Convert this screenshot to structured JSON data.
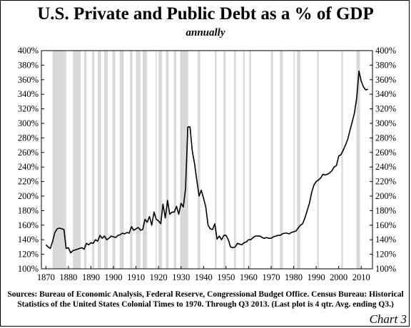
{
  "chart_data": {
    "type": "line",
    "title": "U.S. Private and Public Debt as a % of GDP",
    "subtitle": "annually",
    "xlabel": "",
    "ylabel": "",
    "xlim": [
      1868,
      2015
    ],
    "ylim": [
      100,
      400
    ],
    "x_ticks": [
      1870,
      1880,
      1890,
      1900,
      1910,
      1920,
      1930,
      1940,
      1950,
      1960,
      1970,
      1980,
      1990,
      2000,
      2010
    ],
    "y_ticks": [
      100,
      120,
      140,
      160,
      180,
      200,
      220,
      240,
      260,
      280,
      300,
      320,
      340,
      360,
      380,
      400
    ],
    "y_tick_labels": [
      "100%",
      "120%",
      "140%",
      "160%",
      "180%",
      "200%",
      "220%",
      "240%",
      "260%",
      "280%",
      "300%",
      "320%",
      "340%",
      "360%",
      "380%",
      "400%"
    ],
    "grid": false,
    "line_color": "#000000",
    "recession_color": "#d9d9d9",
    "recession_periods": [
      [
        1873.0,
        1879.0
      ],
      [
        1882.0,
        1885.5
      ],
      [
        1887.0,
        1888.0
      ],
      [
        1890.5,
        1891.5
      ],
      [
        1893.0,
        1894.5
      ],
      [
        1895.8,
        1897.5
      ],
      [
        1899.5,
        1900.8
      ],
      [
        1902.7,
        1904.6
      ],
      [
        1907.3,
        1908.5
      ],
      [
        1910.0,
        1912.0
      ],
      [
        1913.0,
        1914.9
      ],
      [
        1918.7,
        1919.2
      ],
      [
        1920.0,
        1921.5
      ],
      [
        1923.3,
        1924.5
      ],
      [
        1926.8,
        1927.9
      ],
      [
        1929.6,
        1933.2
      ],
      [
        1937.4,
        1938.5
      ],
      [
        1945.0,
        1945.8
      ],
      [
        1948.9,
        1949.8
      ],
      [
        1953.5,
        1954.4
      ],
      [
        1957.6,
        1958.3
      ],
      [
        1960.3,
        1961.1
      ],
      [
        1969.9,
        1970.9
      ],
      [
        1973.9,
        1975.2
      ],
      [
        1980.0,
        1980.5
      ],
      [
        1981.5,
        1982.9
      ],
      [
        1990.5,
        1991.2
      ],
      [
        2001.2,
        2001.9
      ],
      [
        2007.9,
        2009.5
      ]
    ],
    "series": [
      {
        "name": "",
        "x": [
          1870,
          1871,
          1872,
          1873,
          1874,
          1875,
          1876,
          1877,
          1878,
          1879,
          1880,
          1881,
          1882,
          1883,
          1884,
          1885,
          1886,
          1887,
          1888,
          1889,
          1890,
          1891,
          1892,
          1893,
          1894,
          1895,
          1896,
          1897,
          1898,
          1899,
          1900,
          1901,
          1902,
          1903,
          1904,
          1905,
          1906,
          1907,
          1908,
          1909,
          1910,
          1911,
          1912,
          1913,
          1914,
          1915,
          1916,
          1917,
          1918,
          1919,
          1920,
          1921,
          1922,
          1923,
          1924,
          1925,
          1926,
          1927,
          1928,
          1929,
          1930,
          1931,
          1932,
          1933,
          1934,
          1935,
          1936,
          1937,
          1938,
          1939,
          1940,
          1941,
          1942,
          1943,
          1944,
          1945,
          1946,
          1947,
          1948,
          1949,
          1950,
          1951,
          1952,
          1953,
          1954,
          1955,
          1956,
          1957,
          1958,
          1959,
          1960,
          1961,
          1962,
          1963,
          1964,
          1965,
          1966,
          1967,
          1968,
          1969,
          1970,
          1971,
          1972,
          1973,
          1974,
          1975,
          1976,
          1977,
          1978,
          1979,
          1980,
          1981,
          1982,
          1983,
          1984,
          1985,
          1986,
          1987,
          1988,
          1989,
          1990,
          1991,
          1992,
          1993,
          1994,
          1995,
          1996,
          1997,
          1998,
          1999,
          2000,
          2001,
          2002,
          2003,
          2004,
          2005,
          2006,
          2007,
          2008,
          2009,
          2010,
          2011,
          2012,
          2013
        ],
        "values": [
          133,
          130,
          128,
          138,
          150,
          155,
          156,
          155,
          154,
          128,
          129,
          122,
          125,
          126,
          127,
          128,
          129,
          127,
          135,
          133,
          136,
          135,
          140,
          138,
          146,
          142,
          145,
          140,
          142,
          145,
          144,
          143,
          146,
          147,
          149,
          148,
          150,
          149,
          158,
          153,
          155,
          157,
          153,
          154,
          168,
          164,
          172,
          160,
          178,
          168,
          166,
          162,
          189,
          170,
          194,
          175,
          178,
          178,
          186,
          175,
          190,
          185,
          210,
          295,
          295,
          262,
          245,
          222,
          200,
          208,
          197,
          185,
          160,
          155,
          154,
          162,
          141,
          145,
          140,
          146,
          146,
          140,
          130,
          129,
          130,
          135,
          134,
          133,
          136,
          137,
          140,
          140,
          143,
          145,
          145,
          145,
          143,
          142,
          143,
          142,
          142,
          144,
          145,
          146,
          146,
          148,
          149,
          149,
          148,
          150,
          151,
          152,
          156,
          160,
          162,
          170,
          180,
          190,
          205,
          215,
          220,
          222,
          225,
          230,
          229,
          230,
          232,
          235,
          240,
          242,
          255,
          257,
          263,
          270,
          278,
          290,
          302,
          314,
          335,
          372,
          358,
          350,
          346,
          347
        ]
      }
    ],
    "sources": "Sources: Bureau of Economic Analysis, Federal Reserve, Congressional Budget Office. Census Bureau: Historical Statistics of the United States Colonial Times to 1970.   Through Q3 2013.  (Last plot is 4 qtr. Avg. ending Q3.)",
    "chart_label": "Chart 3"
  }
}
